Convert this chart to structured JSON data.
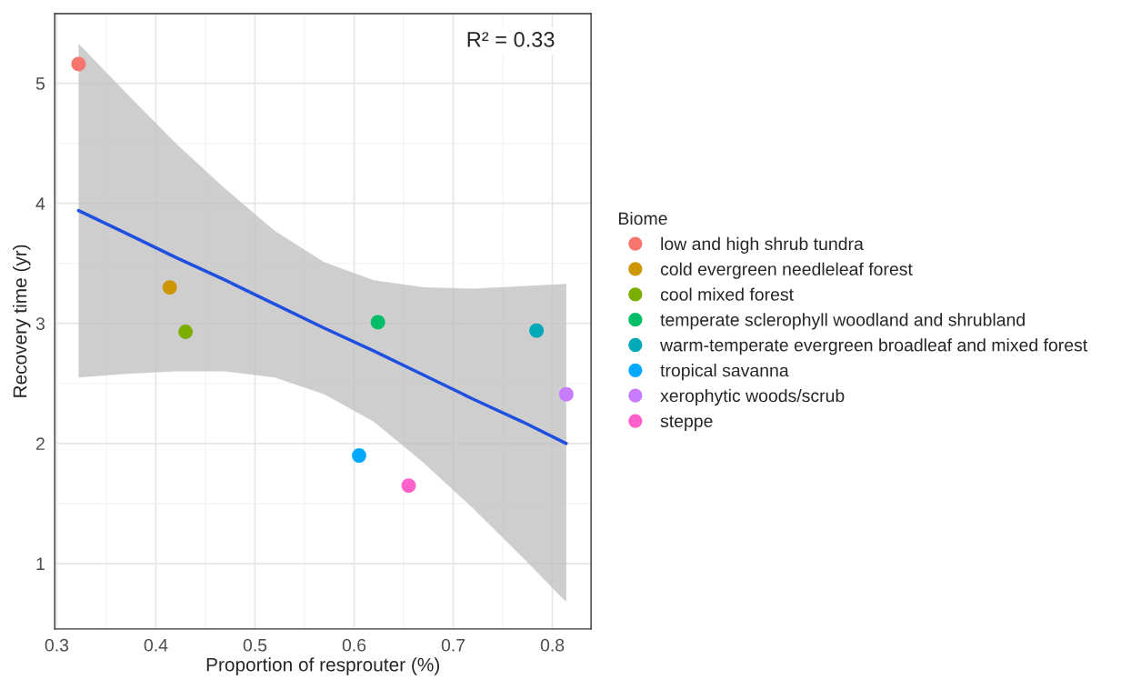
{
  "chart_data": {
    "type": "scatter",
    "xlabel": "Proportion of resprouter (%)",
    "ylabel": "Recovery time (yr)",
    "legend_title": "Biome",
    "legend": "right",
    "grid": true,
    "marker": "circle",
    "xlim": [
      0.298,
      0.839
    ],
    "xticks": [
      0.3,
      0.4,
      0.5,
      0.6,
      0.7,
      0.8
    ],
    "ylim": [
      0.455,
      5.58
    ],
    "yticks": [
      1,
      2,
      3,
      4,
      5
    ],
    "annotations": [
      "R² = 0.33"
    ],
    "series": [
      {
        "name": "low and high shrub tundra",
        "color": "#f8766d",
        "x": [
          0.322
        ],
        "values": [
          5.16
        ]
      },
      {
        "name": "cold evergreen needleleaf forest",
        "color": "#cd9600",
        "x": [
          0.414
        ],
        "values": [
          3.3
        ]
      },
      {
        "name": "cool mixed forest",
        "color": "#7cae00",
        "x": [
          0.43
        ],
        "values": [
          2.93
        ]
      },
      {
        "name": "temperate sclerophyll woodland and shrubland",
        "color": "#00be67",
        "x": [
          0.624
        ],
        "values": [
          3.01
        ]
      },
      {
        "name": "warm-temperate evergreen broadleaf and mixed forest",
        "color": "#00a9b8",
        "x": [
          0.784
        ],
        "values": [
          2.94
        ]
      },
      {
        "name": "tropical savanna",
        "color": "#00a9ff",
        "x": [
          0.605
        ],
        "values": [
          1.9
        ]
      },
      {
        "name": "xerophytic woods/scrub",
        "color": "#c77cff",
        "x": [
          0.814
        ],
        "values": [
          2.41
        ]
      },
      {
        "name": "steppe",
        "color": "#ff61cc",
        "x": [
          0.655
        ],
        "values": [
          1.65
        ]
      },
      {
        "type": "line",
        "color": "#1f4fe0",
        "marker": "none",
        "x": [
          0.322,
          0.37,
          0.42,
          0.47,
          0.52,
          0.57,
          0.62,
          0.67,
          0.72,
          0.77,
          0.814
        ],
        "values": [
          3.94,
          3.75,
          3.55,
          3.36,
          3.16,
          2.96,
          2.77,
          2.57,
          2.37,
          2.18,
          2.0
        ],
        "lower": [
          2.55,
          2.58,
          2.6,
          2.6,
          2.55,
          2.41,
          2.18,
          1.84,
          1.46,
          1.05,
          0.68
        ],
        "upper": [
          5.33,
          4.92,
          4.5,
          4.12,
          3.77,
          3.51,
          3.36,
          3.3,
          3.29,
          3.31,
          3.33
        ]
      }
    ]
  }
}
